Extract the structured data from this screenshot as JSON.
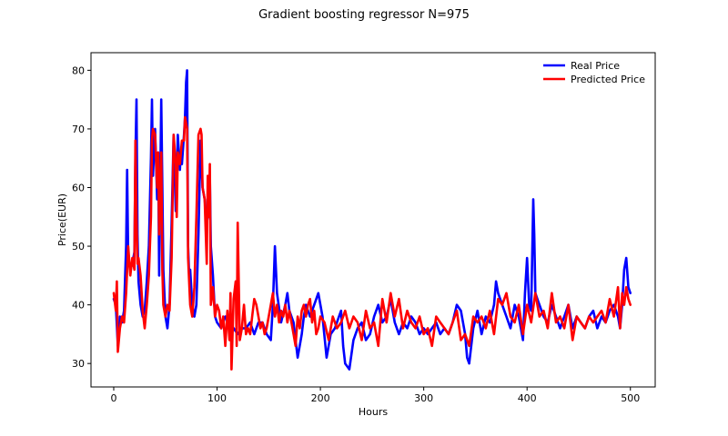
{
  "chart_data": {
    "type": "line",
    "title": "Gradient boosting regressor N=975",
    "xlabel": "Hours",
    "ylabel": "Price(EUR)",
    "xlim": [
      -22,
      524
    ],
    "ylim": [
      26,
      83
    ],
    "xticks": [
      0,
      100,
      200,
      300,
      400,
      500
    ],
    "yticks": [
      30,
      40,
      50,
      60,
      70,
      80
    ],
    "grid": false,
    "legend_position": "top-right",
    "series": [
      {
        "name": "Real Price",
        "color": "#0000ff",
        "x": [
          0,
          2,
          4,
          6,
          8,
          10,
          12,
          13,
          14,
          16,
          18,
          20,
          21,
          22,
          23,
          24,
          26,
          28,
          30,
          32,
          34,
          36,
          37,
          38,
          40,
          42,
          43,
          44,
          46,
          47,
          48,
          50,
          52,
          54,
          56,
          58,
          60,
          61,
          62,
          64,
          65,
          66,
          68,
          69,
          70,
          71,
          72,
          73,
          74,
          76,
          78,
          80,
          82,
          84,
          86,
          88,
          90,
          92,
          93,
          94,
          96,
          98,
          100,
          104,
          108,
          112,
          116,
          120,
          124,
          128,
          132,
          136,
          140,
          144,
          148,
          152,
          154,
          156,
          158,
          162,
          166,
          168,
          170,
          174,
          176,
          178,
          182,
          184,
          186,
          190,
          194,
          198,
          202,
          206,
          210,
          214,
          218,
          220,
          222,
          224,
          228,
          232,
          236,
          240,
          244,
          248,
          252,
          256,
          260,
          264,
          268,
          272,
          276,
          280,
          284,
          288,
          292,
          296,
          300,
          304,
          308,
          312,
          316,
          320,
          324,
          328,
          332,
          336,
          340,
          342,
          344,
          348,
          352,
          356,
          360,
          364,
          368,
          370,
          372,
          376,
          380,
          384,
          388,
          392,
          396,
          398,
          400,
          402,
          404,
          406,
          407,
          408,
          410,
          412,
          416,
          420,
          424,
          428,
          432,
          436,
          440,
          444,
          448,
          452,
          456,
          460,
          464,
          468,
          472,
          476,
          480,
          484,
          488,
          490,
          492,
          494,
          496,
          498,
          500
        ],
        "y": [
          41,
          40,
          33,
          38,
          37,
          39,
          50,
          63,
          48,
          46,
          47,
          49,
          65,
          75,
          52,
          44,
          40,
          38,
          39,
          44,
          50,
          65,
          75,
          62,
          70,
          58,
          66,
          45,
          75,
          60,
          46,
          38,
          36,
          40,
          54,
          69,
          56,
          62,
          69,
          63,
          66,
          64,
          69,
          72,
          78,
          80,
          50,
          45,
          46,
          40,
          38,
          40,
          52,
          68,
          60,
          58,
          54,
          56,
          62,
          50,
          45,
          38,
          37,
          36,
          38,
          37,
          36,
          35,
          36,
          36,
          37,
          35,
          37,
          37,
          35,
          34,
          40,
          50,
          42,
          37,
          40,
          42,
          39,
          37,
          34,
          31,
          35,
          38,
          40,
          38,
          40,
          42,
          38,
          31,
          35,
          36,
          38,
          39,
          33,
          30,
          29,
          34,
          36,
          37,
          34,
          35,
          38,
          40,
          37,
          38,
          41,
          37,
          35,
          37,
          36,
          38,
          37,
          35,
          36,
          35,
          36,
          37,
          35,
          36,
          35,
          37,
          40,
          39,
          35,
          31,
          30,
          36,
          39,
          35,
          38,
          37,
          40,
          44,
          42,
          40,
          38,
          36,
          40,
          38,
          34,
          42,
          48,
          40,
          39,
          58,
          52,
          42,
          41,
          40,
          38,
          37,
          40,
          38,
          36,
          38,
          40,
          36,
          38,
          37,
          36,
          38,
          39,
          36,
          38,
          37,
          39,
          40,
          38,
          36,
          40,
          46,
          48,
          43,
          42
        ]
      },
      {
        "name": "Predicted Price",
        "color": "#ff0000",
        "x": [
          0,
          2,
          3,
          4,
          6,
          8,
          10,
          12,
          14,
          16,
          18,
          20,
          21,
          22,
          23,
          24,
          26,
          28,
          30,
          32,
          34,
          36,
          37,
          38,
          40,
          42,
          43,
          44,
          46,
          47,
          48,
          50,
          52,
          54,
          56,
          58,
          60,
          61,
          62,
          64,
          66,
          68,
          69,
          70,
          71,
          72,
          74,
          76,
          78,
          80,
          82,
          84,
          85,
          86,
          88,
          90,
          91,
          92,
          93,
          94,
          96,
          98,
          100,
          102,
          104,
          106,
          108,
          110,
          112,
          113,
          114,
          116,
          118,
          119,
          120,
          122,
          124,
          126,
          128,
          130,
          132,
          134,
          136,
          138,
          140,
          142,
          144,
          146,
          148,
          150,
          152,
          154,
          156,
          158,
          160,
          162,
          164,
          166,
          168,
          170,
          172,
          174,
          176,
          178,
          180,
          182,
          184,
          186,
          188,
          190,
          192,
          194,
          196,
          198,
          200,
          204,
          208,
          212,
          216,
          220,
          224,
          228,
          232,
          236,
          240,
          244,
          248,
          252,
          256,
          260,
          264,
          268,
          272,
          276,
          280,
          284,
          288,
          292,
          296,
          300,
          304,
          308,
          312,
          316,
          320,
          324,
          328,
          332,
          336,
          340,
          344,
          348,
          352,
          356,
          360,
          364,
          368,
          372,
          376,
          380,
          384,
          388,
          392,
          396,
          400,
          404,
          408,
          412,
          416,
          420,
          424,
          428,
          432,
          436,
          440,
          444,
          448,
          452,
          456,
          460,
          464,
          468,
          472,
          476,
          480,
          484,
          488,
          490,
          492,
          494,
          496,
          498,
          500
        ],
        "y": [
          42,
          39,
          44,
          32,
          36,
          38,
          37,
          42,
          50,
          45,
          48,
          46,
          68,
          55,
          47,
          48,
          45,
          39,
          36,
          40,
          45,
          55,
          68,
          70,
          69,
          60,
          66,
          52,
          66,
          46,
          40,
          38,
          40,
          39,
          48,
          69,
          64,
          55,
          66,
          64,
          68,
          68,
          72,
          71,
          70,
          48,
          40,
          38,
          43,
          55,
          69,
          70,
          69,
          60,
          58,
          47,
          62,
          55,
          64,
          40,
          43,
          38,
          40,
          39,
          36,
          38,
          33,
          39,
          34,
          42,
          29,
          41,
          44,
          33,
          54,
          34,
          36,
          40,
          35,
          36,
          35,
          38,
          41,
          40,
          38,
          36,
          37,
          35,
          36,
          38,
          40,
          42,
          38,
          40,
          37,
          39,
          38,
          40,
          37,
          39,
          37,
          35,
          33,
          38,
          36,
          39,
          40,
          38,
          40,
          41,
          37,
          39,
          35,
          36,
          38,
          37,
          34,
          38,
          36,
          37,
          39,
          36,
          38,
          37,
          34,
          39,
          36,
          37,
          33,
          41,
          37,
          42,
          38,
          41,
          36,
          39,
          37,
          36,
          38,
          35,
          36,
          33,
          38,
          37,
          36,
          35,
          37,
          39,
          34,
          35,
          33,
          38,
          37,
          38,
          36,
          39,
          35,
          41,
          40,
          42,
          38,
          37,
          40,
          35,
          40,
          37,
          42,
          38,
          39,
          36,
          42,
          37,
          38,
          36,
          40,
          34,
          38,
          37,
          36,
          38,
          37,
          38,
          39,
          37,
          41,
          38,
          43,
          36,
          42,
          40,
          43,
          41,
          40
        ]
      }
    ]
  }
}
